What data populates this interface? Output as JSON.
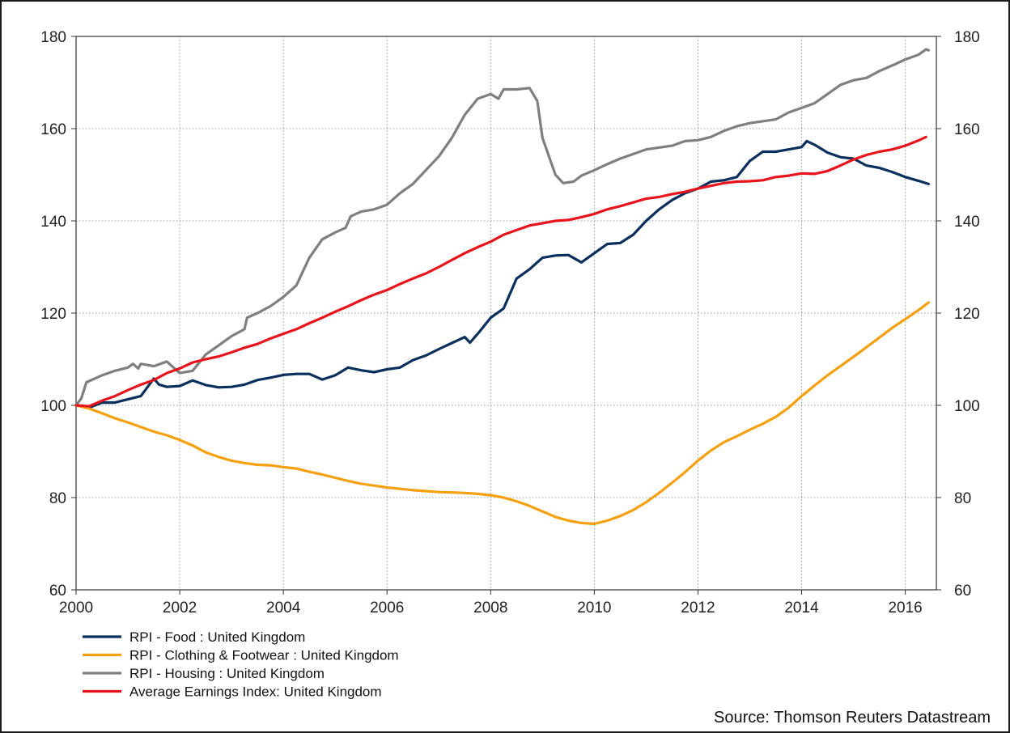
{
  "chart_data": {
    "type": "line",
    "title": "",
    "xlabel": "",
    "ylabel": "",
    "xlim": [
      2000,
      2016.6
    ],
    "ylim": [
      60,
      180
    ],
    "x_ticks": [
      "2000",
      "2002",
      "2004",
      "2006",
      "2008",
      "2010",
      "2012",
      "2014",
      "2016"
    ],
    "y_ticks": [
      "60",
      "80",
      "100",
      "120",
      "140",
      "160",
      "180"
    ],
    "y_axis_both_sides": true,
    "grid": "dotted",
    "legend_position": "bottom-left",
    "source": "Source: Thomson Reuters Datastream",
    "series": [
      {
        "name": "RPI - Food : United Kingdom",
        "color": "#0b2f5c",
        "points": [
          [
            2000.0,
            100.0
          ],
          [
            2000.25,
            99.5
          ],
          [
            2000.5,
            100.6
          ],
          [
            2000.75,
            100.6
          ],
          [
            2001.0,
            101.3
          ],
          [
            2001.25,
            102.0
          ],
          [
            2001.5,
            105.8
          ],
          [
            2001.6,
            104.5
          ],
          [
            2001.75,
            104.0
          ],
          [
            2002.0,
            104.2
          ],
          [
            2002.25,
            105.4
          ],
          [
            2002.5,
            104.4
          ],
          [
            2002.75,
            103.9
          ],
          [
            2003.0,
            104.0
          ],
          [
            2003.25,
            104.5
          ],
          [
            2003.5,
            105.5
          ],
          [
            2003.75,
            106.0
          ],
          [
            2004.0,
            106.6
          ],
          [
            2004.25,
            106.8
          ],
          [
            2004.5,
            106.8
          ],
          [
            2004.75,
            105.6
          ],
          [
            2005.0,
            106.5
          ],
          [
            2005.25,
            108.2
          ],
          [
            2005.5,
            107.6
          ],
          [
            2005.75,
            107.2
          ],
          [
            2006.0,
            107.8
          ],
          [
            2006.25,
            108.2
          ],
          [
            2006.5,
            109.8
          ],
          [
            2006.75,
            110.8
          ],
          [
            2007.0,
            112.2
          ],
          [
            2007.25,
            113.5
          ],
          [
            2007.5,
            114.8
          ],
          [
            2007.6,
            113.6
          ],
          [
            2007.75,
            115.5
          ],
          [
            2008.0,
            119.0
          ],
          [
            2008.25,
            121.0
          ],
          [
            2008.5,
            127.5
          ],
          [
            2008.75,
            129.5
          ],
          [
            2009.0,
            132.0
          ],
          [
            2009.25,
            132.5
          ],
          [
            2009.5,
            132.6
          ],
          [
            2009.75,
            131.0
          ],
          [
            2010.0,
            133.0
          ],
          [
            2010.25,
            135.0
          ],
          [
            2010.5,
            135.2
          ],
          [
            2010.75,
            137.0
          ],
          [
            2011.0,
            140.0
          ],
          [
            2011.25,
            142.5
          ],
          [
            2011.5,
            144.5
          ],
          [
            2011.75,
            146.0
          ],
          [
            2012.0,
            147.0
          ],
          [
            2012.25,
            148.5
          ],
          [
            2012.5,
            148.8
          ],
          [
            2012.75,
            149.5
          ],
          [
            2013.0,
            153.0
          ],
          [
            2013.25,
            155.0
          ],
          [
            2013.5,
            155.0
          ],
          [
            2013.75,
            155.5
          ],
          [
            2014.0,
            156.0
          ],
          [
            2014.1,
            157.3
          ],
          [
            2014.25,
            156.5
          ],
          [
            2014.5,
            154.8
          ],
          [
            2014.75,
            153.8
          ],
          [
            2015.0,
            153.5
          ],
          [
            2015.25,
            152.0
          ],
          [
            2015.5,
            151.5
          ],
          [
            2015.75,
            150.6
          ],
          [
            2016.0,
            149.5
          ],
          [
            2016.25,
            148.7
          ],
          [
            2016.45,
            148.0
          ]
        ]
      },
      {
        "name": "RPI - Clothing & Footwear : United Kingdom",
        "color": "#f5a00f",
        "points": [
          [
            2000.0,
            100.0
          ],
          [
            2000.25,
            99.3
          ],
          [
            2000.5,
            98.3
          ],
          [
            2000.75,
            97.2
          ],
          [
            2001.0,
            96.3
          ],
          [
            2001.25,
            95.3
          ],
          [
            2001.5,
            94.3
          ],
          [
            2001.75,
            93.5
          ],
          [
            2002.0,
            92.5
          ],
          [
            2002.25,
            91.3
          ],
          [
            2002.5,
            89.8
          ],
          [
            2002.75,
            88.8
          ],
          [
            2003.0,
            88.0
          ],
          [
            2003.25,
            87.5
          ],
          [
            2003.5,
            87.1
          ],
          [
            2003.75,
            87.0
          ],
          [
            2004.0,
            86.6
          ],
          [
            2004.25,
            86.3
          ],
          [
            2004.5,
            85.6
          ],
          [
            2004.75,
            85.0
          ],
          [
            2005.0,
            84.3
          ],
          [
            2005.25,
            83.6
          ],
          [
            2005.5,
            83.0
          ],
          [
            2005.75,
            82.6
          ],
          [
            2006.0,
            82.2
          ],
          [
            2006.25,
            81.9
          ],
          [
            2006.5,
            81.6
          ],
          [
            2006.75,
            81.4
          ],
          [
            2007.0,
            81.2
          ],
          [
            2007.25,
            81.1
          ],
          [
            2007.5,
            81.0
          ],
          [
            2007.75,
            80.8
          ],
          [
            2008.0,
            80.5
          ],
          [
            2008.25,
            80.0
          ],
          [
            2008.5,
            79.2
          ],
          [
            2008.75,
            78.2
          ],
          [
            2009.0,
            77.0
          ],
          [
            2009.25,
            75.8
          ],
          [
            2009.5,
            75.0
          ],
          [
            2009.75,
            74.5
          ],
          [
            2010.0,
            74.3
          ],
          [
            2010.25,
            75.0
          ],
          [
            2010.5,
            76.0
          ],
          [
            2010.75,
            77.3
          ],
          [
            2011.0,
            79.0
          ],
          [
            2011.25,
            81.0
          ],
          [
            2011.5,
            83.2
          ],
          [
            2011.75,
            85.5
          ],
          [
            2012.0,
            88.0
          ],
          [
            2012.25,
            90.2
          ],
          [
            2012.5,
            92.0
          ],
          [
            2012.75,
            93.3
          ],
          [
            2013.0,
            94.7
          ],
          [
            2013.25,
            96.0
          ],
          [
            2013.5,
            97.5
          ],
          [
            2013.75,
            99.5
          ],
          [
            2014.0,
            102.0
          ],
          [
            2014.25,
            104.3
          ],
          [
            2014.5,
            106.5
          ],
          [
            2014.75,
            108.5
          ],
          [
            2015.0,
            110.5
          ],
          [
            2015.25,
            112.6
          ],
          [
            2015.5,
            114.7
          ],
          [
            2015.75,
            116.8
          ],
          [
            2016.0,
            118.7
          ],
          [
            2016.25,
            120.6
          ],
          [
            2016.45,
            122.3
          ]
        ]
      },
      {
        "name": "RPI - Housing : United Kingdom",
        "color": "#7f7f7f",
        "points": [
          [
            2000.0,
            100.0
          ],
          [
            2000.1,
            101.5
          ],
          [
            2000.2,
            105.0
          ],
          [
            2000.5,
            106.5
          ],
          [
            2000.75,
            107.5
          ],
          [
            2001.0,
            108.2
          ],
          [
            2001.1,
            109.0
          ],
          [
            2001.2,
            108.0
          ],
          [
            2001.25,
            109.0
          ],
          [
            2001.5,
            108.5
          ],
          [
            2001.75,
            109.5
          ],
          [
            2002.0,
            107.0
          ],
          [
            2002.25,
            107.5
          ],
          [
            2002.5,
            111.0
          ],
          [
            2002.75,
            113.0
          ],
          [
            2003.0,
            115.0
          ],
          [
            2003.25,
            116.5
          ],
          [
            2003.3,
            119.0
          ],
          [
            2003.5,
            120.0
          ],
          [
            2003.75,
            121.5
          ],
          [
            2004.0,
            123.5
          ],
          [
            2004.25,
            126.0
          ],
          [
            2004.5,
            132.0
          ],
          [
            2004.75,
            136.0
          ],
          [
            2005.0,
            137.5
          ],
          [
            2005.2,
            138.5
          ],
          [
            2005.3,
            141.0
          ],
          [
            2005.5,
            142.0
          ],
          [
            2005.75,
            142.5
          ],
          [
            2006.0,
            143.5
          ],
          [
            2006.25,
            146.0
          ],
          [
            2006.5,
            148.0
          ],
          [
            2006.75,
            151.0
          ],
          [
            2007.0,
            154.0
          ],
          [
            2007.25,
            158.0
          ],
          [
            2007.5,
            163.0
          ],
          [
            2007.75,
            166.5
          ],
          [
            2008.0,
            167.5
          ],
          [
            2008.15,
            166.5
          ],
          [
            2008.25,
            168.5
          ],
          [
            2008.5,
            168.5
          ],
          [
            2008.75,
            168.8
          ],
          [
            2008.9,
            166.0
          ],
          [
            2009.0,
            158.0
          ],
          [
            2009.25,
            150.0
          ],
          [
            2009.4,
            148.2
          ],
          [
            2009.6,
            148.5
          ],
          [
            2009.75,
            149.8
          ],
          [
            2010.0,
            151.0
          ],
          [
            2010.25,
            152.3
          ],
          [
            2010.5,
            153.5
          ],
          [
            2010.75,
            154.5
          ],
          [
            2011.0,
            155.5
          ],
          [
            2011.5,
            156.3
          ],
          [
            2011.75,
            157.3
          ],
          [
            2012.0,
            157.5
          ],
          [
            2012.25,
            158.2
          ],
          [
            2012.5,
            159.5
          ],
          [
            2012.75,
            160.5
          ],
          [
            2013.0,
            161.2
          ],
          [
            2013.5,
            162.0
          ],
          [
            2013.75,
            163.5
          ],
          [
            2014.0,
            164.5
          ],
          [
            2014.25,
            165.5
          ],
          [
            2014.5,
            167.5
          ],
          [
            2014.75,
            169.5
          ],
          [
            2015.0,
            170.5
          ],
          [
            2015.25,
            171.0
          ],
          [
            2015.5,
            172.5
          ],
          [
            2015.75,
            173.7
          ],
          [
            2016.0,
            175.0
          ],
          [
            2016.25,
            176.0
          ],
          [
            2016.4,
            177.2
          ],
          [
            2016.45,
            177.0
          ]
        ]
      },
      {
        "name": "Average Earnings Index: United Kingdom",
        "color": "#e8141c",
        "points": [
          [
            2000.0,
            100.0
          ],
          [
            2000.25,
            99.8
          ],
          [
            2000.5,
            101.0
          ],
          [
            2000.75,
            102.0
          ],
          [
            2001.0,
            103.3
          ],
          [
            2001.25,
            104.5
          ],
          [
            2001.5,
            105.5
          ],
          [
            2001.75,
            107.0
          ],
          [
            2002.0,
            108.0
          ],
          [
            2002.25,
            109.3
          ],
          [
            2002.5,
            110.0
          ],
          [
            2002.75,
            110.6
          ],
          [
            2003.0,
            111.5
          ],
          [
            2003.25,
            112.5
          ],
          [
            2003.5,
            113.3
          ],
          [
            2003.75,
            114.5
          ],
          [
            2004.0,
            115.5
          ],
          [
            2004.25,
            116.5
          ],
          [
            2004.5,
            117.8
          ],
          [
            2004.75,
            119.0
          ],
          [
            2005.0,
            120.3
          ],
          [
            2005.25,
            121.5
          ],
          [
            2005.5,
            122.8
          ],
          [
            2005.75,
            124.0
          ],
          [
            2006.0,
            125.0
          ],
          [
            2006.25,
            126.3
          ],
          [
            2006.5,
            127.5
          ],
          [
            2006.75,
            128.6
          ],
          [
            2007.0,
            130.0
          ],
          [
            2007.25,
            131.5
          ],
          [
            2007.5,
            133.0
          ],
          [
            2007.75,
            134.3
          ],
          [
            2008.0,
            135.5
          ],
          [
            2008.25,
            137.0
          ],
          [
            2008.5,
            138.0
          ],
          [
            2008.75,
            139.0
          ],
          [
            2009.0,
            139.5
          ],
          [
            2009.25,
            140.0
          ],
          [
            2009.5,
            140.2
          ],
          [
            2009.75,
            140.8
          ],
          [
            2010.0,
            141.5
          ],
          [
            2010.25,
            142.5
          ],
          [
            2010.5,
            143.2
          ],
          [
            2010.75,
            144.0
          ],
          [
            2011.0,
            144.8
          ],
          [
            2011.25,
            145.2
          ],
          [
            2011.5,
            145.8
          ],
          [
            2011.75,
            146.3
          ],
          [
            2012.0,
            147.0
          ],
          [
            2012.25,
            147.6
          ],
          [
            2012.5,
            148.2
          ],
          [
            2012.75,
            148.5
          ],
          [
            2013.0,
            148.6
          ],
          [
            2013.25,
            148.8
          ],
          [
            2013.5,
            149.5
          ],
          [
            2013.75,
            149.8
          ],
          [
            2014.0,
            150.3
          ],
          [
            2014.25,
            150.2
          ],
          [
            2014.5,
            150.8
          ],
          [
            2014.75,
            152.0
          ],
          [
            2015.0,
            153.3
          ],
          [
            2015.25,
            154.3
          ],
          [
            2015.5,
            155.0
          ],
          [
            2015.75,
            155.5
          ],
          [
            2016.0,
            156.3
          ],
          [
            2016.25,
            157.4
          ],
          [
            2016.4,
            158.2
          ]
        ]
      }
    ]
  }
}
